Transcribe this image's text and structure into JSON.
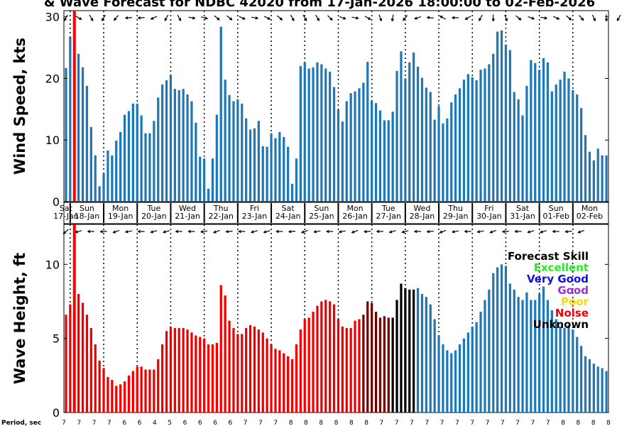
{
  "chart_data": {
    "type": "bar",
    "title": "& Wave Forecast for NDBC 42020 from 17-Jan-2026 18:00:00 to 02-Feb-2026",
    "days": [
      {
        "day": "Sat",
        "date": "17-Jan"
      },
      {
        "day": "Sun",
        "date": "18-Jan"
      },
      {
        "day": "Mon",
        "date": "19-Jan"
      },
      {
        "day": "Tue",
        "date": "20-Jan"
      },
      {
        "day": "Wed",
        "date": "21-Jan"
      },
      {
        "day": "Thu",
        "date": "22-Jan"
      },
      {
        "day": "Fri",
        "date": "23-Jan"
      },
      {
        "day": "Sat",
        "date": "24-Jan"
      },
      {
        "day": "Sun",
        "date": "25-Jan"
      },
      {
        "day": "Mon",
        "date": "26-Jan"
      },
      {
        "day": "Tue",
        "date": "27-Jan"
      },
      {
        "day": "Wed",
        "date": "28-Jan"
      },
      {
        "day": "Thu",
        "date": "29-Jan"
      },
      {
        "day": "Fri",
        "date": "30-Jan"
      },
      {
        "day": "Sat",
        "date": "31-Jan"
      },
      {
        "day": "Sun",
        "date": "01-Feb"
      },
      {
        "day": "Mon",
        "date": "02-Feb"
      }
    ],
    "wind": {
      "ylabel": "Wind Speed, kts",
      "ylim": [
        0,
        31
      ],
      "yticks": [
        0,
        10,
        20,
        30
      ],
      "values": [
        21.7,
        26.7,
        26.8,
        24,
        21.8,
        18.8,
        12.1,
        7.5,
        2.5,
        4.6,
        8.3,
        7.5,
        9.9,
        11.3,
        14.1,
        14.7,
        15.9,
        15.9,
        14,
        11.1,
        11.1,
        13.1,
        16.9,
        19,
        19.7,
        20.6,
        18.3,
        18.1,
        18.3,
        17.4,
        16.3,
        12.8,
        7.3,
        7.0,
        2.1,
        7.0,
        14.1,
        28.4,
        19.8,
        17.3,
        16.3,
        16.6,
        15.9,
        13.5,
        11.7,
        11.9,
        13.1,
        9.0,
        8.9,
        11.1,
        10.3,
        11.3,
        10.5,
        8.9,
        2.9,
        7.0,
        22.0,
        22.6,
        21.6,
        21.8,
        22.6,
        22.3,
        21.6,
        21.1,
        18.6,
        14.9,
        13.0,
        16.3,
        17.6,
        17.9,
        18.4,
        19.3,
        22.7,
        16.4,
        16.0,
        14.8,
        13.2,
        13.2,
        14.6,
        21.2,
        24.4,
        20.0,
        22.6,
        24.2,
        21.9,
        20.1,
        18.5,
        17.8,
        13.3,
        15.5,
        12.7,
        13.5,
        16.1,
        17.4,
        18.4,
        19.8,
        20.7,
        20.2,
        19.7,
        21.4,
        21.6,
        22.3,
        24.0,
        27.6,
        27.8,
        25.5,
        24.6,
        17.8,
        16.6,
        14.0,
        18.8,
        23.0,
        22.5,
        21.4,
        23.3,
        22.6,
        17.9,
        19.0,
        19.8,
        21.1,
        20.0,
        18.1,
        17.4,
        15.2,
        10.8,
        8.1,
        6.7,
        8.6,
        7.5,
        7.5
      ],
      "arrow_angles": [
        120,
        35,
        40,
        30,
        25,
        10,
        60,
        80,
        100,
        120,
        110,
        140,
        130,
        150,
        160,
        175,
        180,
        185,
        175,
        165,
        160,
        155,
        150,
        140,
        120,
        100,
        80,
        60,
        40,
        20,
        10,
        5,
        10,
        15,
        20,
        30,
        40,
        45,
        50,
        40,
        30,
        30,
        25,
        20,
        15,
        10,
        15,
        20,
        25,
        30,
        35,
        40,
        50,
        55,
        60,
        60,
        60,
        60,
        60,
        60,
        60,
        55,
        50,
        45,
        40,
        30,
        20,
        10,
        5,
        10,
        15,
        20,
        30,
        40,
        60,
        70,
        80,
        90,
        100,
        110,
        120,
        130,
        140,
        150,
        160,
        170,
        180,
        185,
        190,
        200,
        210,
        200,
        190,
        180,
        170,
        160,
        150,
        140,
        130,
        120,
        110,
        100,
        90,
        80,
        75,
        70,
        60,
        50,
        40,
        30,
        25,
        20,
        15,
        10,
        10,
        15,
        20,
        25,
        30,
        35,
        40,
        45,
        50,
        50,
        55,
        60,
        65,
        70,
        80,
        90,
        100,
        110,
        120
      ]
    },
    "wave": {
      "ylabel": "Wave Height, ft",
      "ylim": [
        0,
        12.7
      ],
      "yticks": [
        0,
        5,
        10
      ],
      "values": [
        6.6,
        7.3,
        8.3,
        8.0,
        7.4,
        6.6,
        5.7,
        4.6,
        3.5,
        3.0,
        2.4,
        2.2,
        1.8,
        1.9,
        2.1,
        2.5,
        2.8,
        3.1,
        3.1,
        2.9,
        2.9,
        2.9,
        3.6,
        4.6,
        5.5,
        5.8,
        5.7,
        5.7,
        5.7,
        5.6,
        5.4,
        5.2,
        5.1,
        5.0,
        4.6,
        4.6,
        4.7,
        8.6,
        7.9,
        6.2,
        5.7,
        5.3,
        5.3,
        5.7,
        5.9,
        5.8,
        5.6,
        5.4,
        5.0,
        4.6,
        4.3,
        4.2,
        4.0,
        3.8,
        3.6,
        4.6,
        5.6,
        6.3,
        6.4,
        6.8,
        7.2,
        7.5,
        7.6,
        7.5,
        7.3,
        6.3,
        5.8,
        5.7,
        5.7,
        6.2,
        6.3,
        6.6,
        7.5,
        7.4,
        6.8,
        6.4,
        6.5,
        6.4,
        6.4,
        7.6,
        8.7,
        8.4,
        8.3,
        8.3,
        8.4,
        8.0,
        7.8,
        7.3,
        6.3,
        5.2,
        4.6,
        4.2,
        4.0,
        4.2,
        4.6,
        5.0,
        5.4,
        5.8,
        6.1,
        6.8,
        7.6,
        8.3,
        9.4,
        9.8,
        10.0,
        9.9,
        8.7,
        8.3,
        7.8,
        7.6,
        8.1,
        7.6,
        7.6,
        8.0,
        8.5,
        7.6,
        6.9,
        6.3,
        5.8,
        5.7,
        5.9,
        5.6,
        5.1,
        4.5,
        3.8,
        3.6,
        3.3,
        3.1,
        3.0,
        2.8
      ],
      "skill_runs": [
        {
          "from": 0,
          "to": 77,
          "skill": "Noise"
        },
        {
          "from": 78,
          "to": 83,
          "skill": "Unknown"
        },
        {
          "from": 84,
          "to": 129,
          "skill": "Excellent-blue"
        }
      ],
      "arrow_angles": [
        140,
        150,
        160,
        165,
        170,
        175,
        180,
        180,
        180,
        175,
        170,
        165,
        160,
        160,
        165,
        170,
        175,
        180,
        180,
        175,
        170,
        165,
        160,
        160,
        165,
        170,
        175,
        180,
        180,
        180,
        180,
        180,
        175,
        170,
        165,
        160,
        160,
        165,
        170,
        175,
        180,
        180,
        180,
        175,
        170,
        165,
        160,
        160,
        165,
        170,
        175,
        180,
        180,
        180,
        175,
        170,
        165,
        160,
        160,
        165,
        170,
        175,
        180,
        180,
        180,
        175,
        170,
        165,
        160,
        160,
        165,
        170,
        175,
        180,
        180,
        180,
        175,
        170,
        165,
        160,
        160,
        165,
        170,
        175,
        180,
        180,
        180,
        175,
        170,
        165,
        160,
        160,
        165,
        170,
        175,
        180,
        180,
        180,
        175,
        170,
        165,
        160,
        160,
        165,
        170,
        175,
        180,
        180,
        180,
        175,
        170,
        165,
        160,
        160,
        165,
        170,
        175,
        180,
        180,
        180,
        175,
        170,
        165,
        160,
        160
      ]
    },
    "legend": {
      "title": "Forecast Skill",
      "items": [
        {
          "label": "Excellent",
          "color": "#22ee22"
        },
        {
          "label": "Very Good",
          "color": "#1111dd"
        },
        {
          "label": "Good",
          "color": "#9933cc"
        },
        {
          "label": "Poor",
          "color": "#ffd700"
        },
        {
          "label": "Noise",
          "color": "#ee0000"
        },
        {
          "label": "Unknown",
          "color": "#000000"
        }
      ]
    },
    "period": {
      "label": "Period, sec",
      "values": [
        "7",
        "7",
        "7",
        "7",
        "6",
        "6",
        "4",
        "5",
        "6",
        "6",
        "6",
        "6",
        "7",
        "7",
        "7",
        "8",
        "8",
        "8",
        "8",
        "8",
        "8",
        "7",
        "7",
        "7",
        "7",
        "7",
        "7",
        "7",
        "7",
        "7",
        "7",
        "7",
        "7",
        "8",
        "8",
        "8",
        "8"
      ]
    },
    "colors": {
      "bar_blue": "#1f77b4",
      "noise": "#ee0000",
      "unknown": "#000000",
      "dark_red": "#6b0000",
      "now_line": "#ff0000"
    }
  }
}
